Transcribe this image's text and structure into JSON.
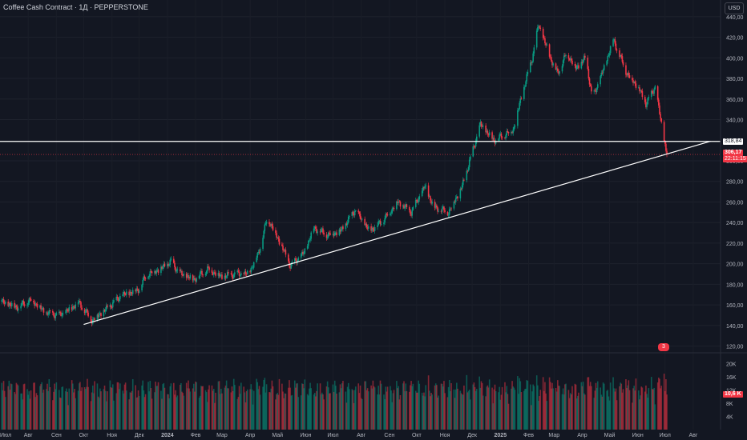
{
  "header": {
    "title": "Coffee Cash Contract · 1Д · PEPPERSTONE"
  },
  "toolbar": {
    "currency": "USD"
  },
  "price_scale": {
    "ticks": [
      "440,00",
      "420,00",
      "400,00",
      "380,00",
      "360,00",
      "340,00",
      "300,00",
      "280,00",
      "260,00",
      "240,00",
      "220,00",
      "200,00",
      "180,00",
      "160,00",
      "140,00",
      "120,00"
    ],
    "line_label": "318,84",
    "last_price_label": "306,17",
    "countdown_label": "22:11:15"
  },
  "volume_scale": {
    "ticks": [
      "20K",
      "16K",
      "12K",
      "8K",
      "4K"
    ],
    "last_volume_label": "10,6 K"
  },
  "time_axis": {
    "labels": [
      "Июл",
      "Авг",
      "Сен",
      "Окт",
      "Ноя",
      "Дек",
      "2024",
      "Фев",
      "Мар",
      "Апр",
      "Май",
      "Июн",
      "Июл",
      "Авг",
      "Сен",
      "Окт",
      "Ноя",
      "Дек",
      "2025",
      "Фев",
      "Мар",
      "Апр",
      "Май",
      "Июн",
      "Июл",
      "Авг"
    ]
  },
  "events": {
    "badge": "3"
  },
  "colors": {
    "up": "#089981",
    "down": "#f23645",
    "bg": "#131722",
    "line": "#ffffff"
  },
  "chart_data": {
    "type": "candlestick",
    "title": "Coffee Cash Contract · 1Д · PEPPERSTONE",
    "ylim": [
      115,
      450
    ],
    "x_range": [
      "2023-07-01",
      "2025-08-31"
    ],
    "volume_ylim": [
      0,
      22000
    ],
    "price_series": [
      {
        "date": "2023-07-01",
        "close": 163
      },
      {
        "date": "2023-07-20",
        "close": 158
      },
      {
        "date": "2023-08-05",
        "close": 165
      },
      {
        "date": "2023-08-20",
        "close": 152
      },
      {
        "date": "2023-09-05",
        "close": 150
      },
      {
        "date": "2023-09-15",
        "close": 155
      },
      {
        "date": "2023-09-25",
        "close": 163
      },
      {
        "date": "2023-10-10",
        "close": 145
      },
      {
        "date": "2023-10-25",
        "close": 155
      },
      {
        "date": "2023-11-10",
        "close": 168
      },
      {
        "date": "2023-11-30",
        "close": 175
      },
      {
        "date": "2023-12-10",
        "close": 190
      },
      {
        "date": "2023-12-25",
        "close": 195
      },
      {
        "date": "2024-01-05",
        "close": 202
      },
      {
        "date": "2024-01-15",
        "close": 190
      },
      {
        "date": "2024-01-30",
        "close": 185
      },
      {
        "date": "2024-02-15",
        "close": 195
      },
      {
        "date": "2024-03-01",
        "close": 187
      },
      {
        "date": "2024-03-15",
        "close": 190
      },
      {
        "date": "2024-03-30",
        "close": 190
      },
      {
        "date": "2024-04-10",
        "close": 210
      },
      {
        "date": "2024-04-20",
        "close": 245
      },
      {
        "date": "2024-05-05",
        "close": 218
      },
      {
        "date": "2024-05-15",
        "close": 198
      },
      {
        "date": "2024-05-30",
        "close": 210
      },
      {
        "date": "2024-06-10",
        "close": 235
      },
      {
        "date": "2024-06-25",
        "close": 228
      },
      {
        "date": "2024-07-10",
        "close": 232
      },
      {
        "date": "2024-07-25",
        "close": 252
      },
      {
        "date": "2024-08-10",
        "close": 232
      },
      {
        "date": "2024-08-25",
        "close": 242
      },
      {
        "date": "2024-09-10",
        "close": 260
      },
      {
        "date": "2024-09-25",
        "close": 250
      },
      {
        "date": "2024-10-10",
        "close": 275
      },
      {
        "date": "2024-10-20",
        "close": 255
      },
      {
        "date": "2024-11-05",
        "close": 250
      },
      {
        "date": "2024-11-20",
        "close": 275
      },
      {
        "date": "2024-11-30",
        "close": 305
      },
      {
        "date": "2024-12-10",
        "close": 335
      },
      {
        "date": "2024-12-25",
        "close": 320
      },
      {
        "date": "2025-01-05",
        "close": 325
      },
      {
        "date": "2025-01-15",
        "close": 330
      },
      {
        "date": "2025-01-25",
        "close": 365
      },
      {
        "date": "2025-02-05",
        "close": 400
      },
      {
        "date": "2025-02-12",
        "close": 432
      },
      {
        "date": "2025-02-25",
        "close": 400
      },
      {
        "date": "2025-03-05",
        "close": 385
      },
      {
        "date": "2025-03-15",
        "close": 405
      },
      {
        "date": "2025-03-25",
        "close": 390
      },
      {
        "date": "2025-04-05",
        "close": 400
      },
      {
        "date": "2025-04-12",
        "close": 360
      },
      {
        "date": "2025-04-25",
        "close": 390
      },
      {
        "date": "2025-05-05",
        "close": 418
      },
      {
        "date": "2025-05-20",
        "close": 385
      },
      {
        "date": "2025-06-01",
        "close": 372
      },
      {
        "date": "2025-06-10",
        "close": 355
      },
      {
        "date": "2025-06-20",
        "close": 372
      },
      {
        "date": "2025-06-30",
        "close": 320
      },
      {
        "date": "2025-07-03",
        "close": 306.17
      }
    ],
    "horizontal_line": {
      "value": 318.84
    },
    "trendline": {
      "from": {
        "date": "2023-10-01",
        "value": 141
      },
      "to": {
        "date": "2025-08-20",
        "value": 319
      }
    },
    "last_price": 306.17,
    "last_volume": 10600
  }
}
